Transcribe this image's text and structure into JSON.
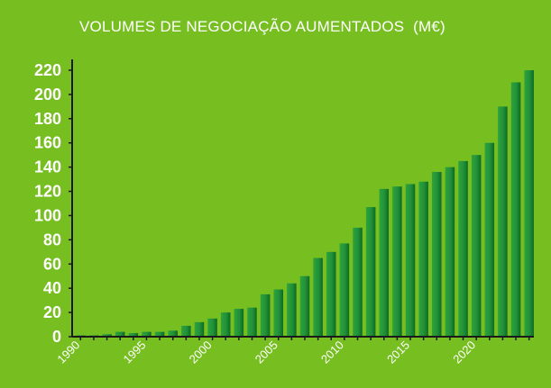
{
  "chart_data": {
    "type": "bar",
    "title": "VOLUMES DE NEGOCIAÇÃO AUMENTADOS  (M€)",
    "xlabel": "",
    "ylabel": "",
    "x": [
      1990,
      1991,
      1992,
      1993,
      1994,
      1995,
      1996,
      1997,
      1998,
      1999,
      2000,
      2001,
      2002,
      2003,
      2004,
      2005,
      2006,
      2007,
      2008,
      2009,
      2010,
      2011,
      2012,
      2013,
      2014,
      2015,
      2016,
      2017,
      2018,
      2019,
      2020,
      2021,
      2022,
      2023,
      2024
    ],
    "values": [
      1,
      1,
      2,
      4,
      3,
      4,
      4,
      5,
      9,
      12,
      15,
      20,
      23,
      24,
      35,
      39,
      44,
      50,
      65,
      70,
      77,
      90,
      107,
      122,
      124,
      126,
      128,
      136,
      140,
      145,
      150,
      160,
      190,
      210,
      220
    ],
    "ylim": [
      0,
      220
    ],
    "yticks": [
      0,
      20,
      40,
      60,
      80,
      100,
      120,
      140,
      160,
      180,
      200,
      220
    ],
    "xtick_labels": [
      "1990",
      "1995",
      "2000",
      "2005",
      "2010",
      "2015",
      "2020"
    ],
    "grid": false,
    "legend": "none",
    "colors": {
      "background": "#77bf20",
      "bar_light": "#2da33b",
      "bar_dark": "#0b6b22",
      "axis": "#1a1a1a",
      "text": "#ffffff"
    }
  }
}
